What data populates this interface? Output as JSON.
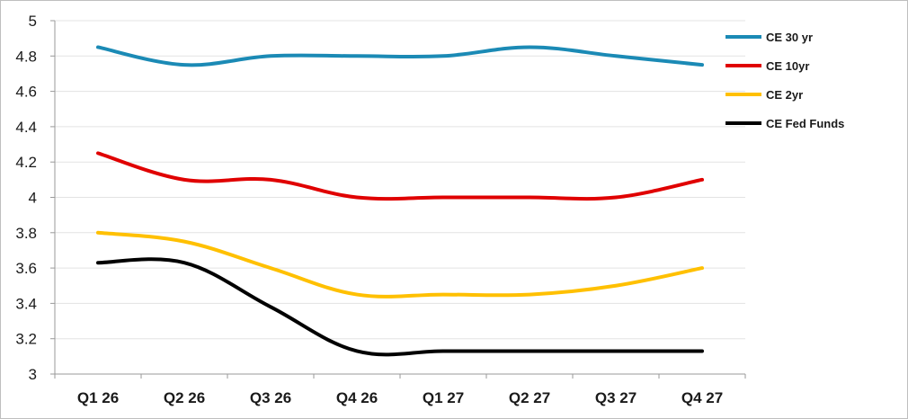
{
  "chart_data": {
    "type": "line",
    "title": "",
    "xlabel": "",
    "ylabel": "",
    "categories": [
      "Q1 26",
      "Q2 26",
      "Q3 26",
      "Q4 26",
      "Q1 27",
      "Q2 27",
      "Q3 27",
      "Q4 27"
    ],
    "yticks": [
      "3",
      "3.2",
      "3.4",
      "3.6",
      "3.8",
      "4",
      "4.2",
      "4.4",
      "4.6",
      "4.8",
      "5"
    ],
    "ylim": [
      3,
      5
    ],
    "grid": "horizontal",
    "legend_position": "right",
    "series": [
      {
        "name": "CE 30 yr",
        "color": "#1b8ab5",
        "values": [
          4.85,
          4.75,
          4.8,
          4.8,
          4.8,
          4.85,
          4.8,
          4.75
        ]
      },
      {
        "name": "CE 10yr",
        "color": "#e00000",
        "values": [
          4.25,
          4.1,
          4.1,
          4.0,
          4.0,
          4.0,
          4.0,
          4.1
        ]
      },
      {
        "name": "CE 2yr",
        "color": "#ffc000",
        "values": [
          3.8,
          3.75,
          3.6,
          3.45,
          3.45,
          3.45,
          3.5,
          3.6
        ]
      },
      {
        "name": "CE Fed Funds",
        "color": "#000000",
        "values": [
          3.63,
          3.63,
          3.38,
          3.13,
          3.13,
          3.13,
          3.13,
          3.13
        ]
      }
    ]
  }
}
